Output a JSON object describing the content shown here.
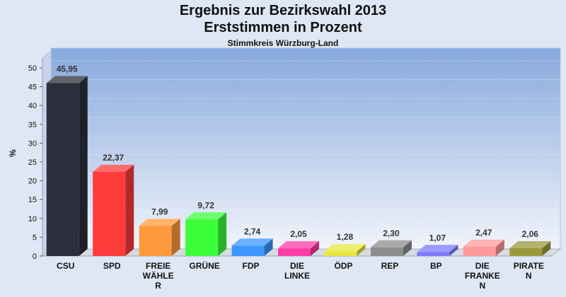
{
  "chart_data": {
    "type": "bar",
    "title": "Ergebnis zur Bezirkswahl 2013",
    "subtitle": "Erststimmen in Prozent",
    "subsubtitle": "Stimmkreis Würzburg-Land",
    "ylabel": "%",
    "ylim": [
      0,
      50
    ],
    "yticks": [
      "0",
      "5",
      "10",
      "15",
      "20",
      "25",
      "30",
      "35",
      "40",
      "45",
      "50"
    ],
    "grid": true,
    "categories": [
      [
        "CSU"
      ],
      [
        "SPD"
      ],
      [
        "FREIE",
        "WÄHLE",
        "R"
      ],
      [
        "GRÜNE"
      ],
      [
        "FDP"
      ],
      [
        "DIE",
        "LINKE"
      ],
      [
        "ÖDP"
      ],
      [
        "REP"
      ],
      [
        "BP"
      ],
      [
        "DIE",
        "FRANKE",
        "N"
      ],
      [
        "PIRATE",
        "N"
      ]
    ],
    "values": [
      45.95,
      22.37,
      7.99,
      9.72,
      2.74,
      2.05,
      1.28,
      2.3,
      1.07,
      2.47,
      2.06
    ],
    "value_labels": [
      "45,95",
      "22,37",
      "7,99",
      "9,72",
      "2,74",
      "2,05",
      "1,28",
      "2,30",
      "1,07",
      "2,47",
      "2,06"
    ],
    "colors": [
      "#2b2f3b",
      "#ff3b3b",
      "#ff9a3c",
      "#3cff3c",
      "#3c96ff",
      "#ff3ca6",
      "#e8e83c",
      "#8c8c8c",
      "#7b7bff",
      "#ff9a9a",
      "#9a9a3c"
    ]
  }
}
